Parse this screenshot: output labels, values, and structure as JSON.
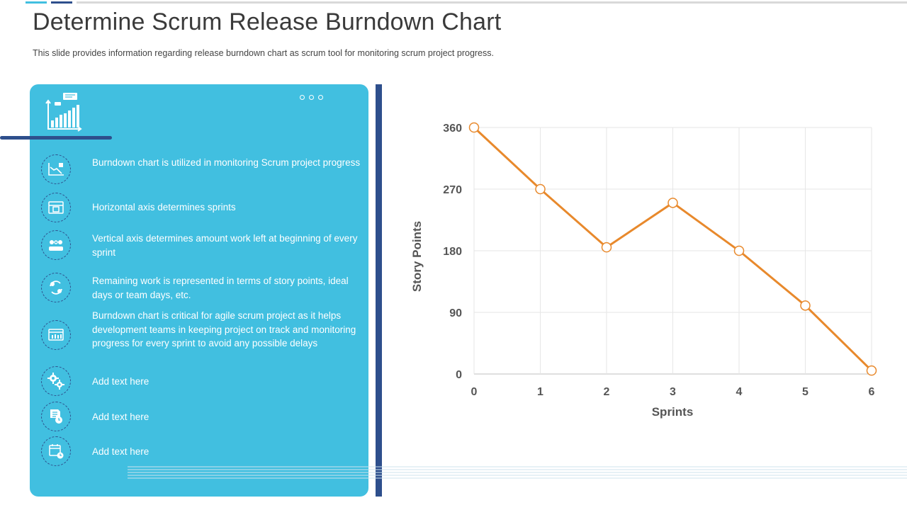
{
  "page": {
    "title": "Determine Scrum Release Burndown Chart",
    "subtitle": "This slide provides information regarding release burndown chart as scrum tool for monitoring scrum project progress."
  },
  "panel": {
    "items": [
      {
        "icon": "chart-down-icon",
        "text": "Burndown chart is utilized in monitoring  Scrum project progress"
      },
      {
        "icon": "calendar-grid-icon",
        "text": "Horizontal axis determines sprints"
      },
      {
        "icon": "team-gear-icon",
        "text": "Vertical axis determines amount  work left at beginning of every sprint"
      },
      {
        "icon": "cycle-arrows-icon",
        "text": "Remaining work is represented in terms of story points, ideal days or team days, etc."
      },
      {
        "icon": "dashboard-icon",
        "text": "Burndown  chart is critical for agile scrum project as it helps development  teams in keeping  project on track and monitoring  progress for every sprint to avoid any possible delays"
      },
      {
        "icon": "gears-icon",
        "text": "Add text here"
      },
      {
        "icon": "document-clock-icon",
        "text": "Add text here"
      },
      {
        "icon": "calendar-clock-icon",
        "text": "Add text here"
      }
    ]
  },
  "colors": {
    "accent": "#41bfe0",
    "dark": "#2e4f8c",
    "line": "#e8892c"
  },
  "chart_data": {
    "type": "line",
    "x": [
      0,
      1,
      2,
      3,
      4,
      5,
      6
    ],
    "values": [
      360,
      270,
      185,
      250,
      180,
      100,
      5
    ],
    "xlabel": "Sprints",
    "ylabel": "Story Points",
    "xticks": [
      "0",
      "1",
      "2",
      "3",
      "4",
      "5",
      "6"
    ],
    "yticks": [
      "0",
      "90",
      "180",
      "270",
      "360"
    ],
    "ylim": [
      0,
      360
    ],
    "xlim": [
      0,
      6
    ],
    "grid": true
  }
}
